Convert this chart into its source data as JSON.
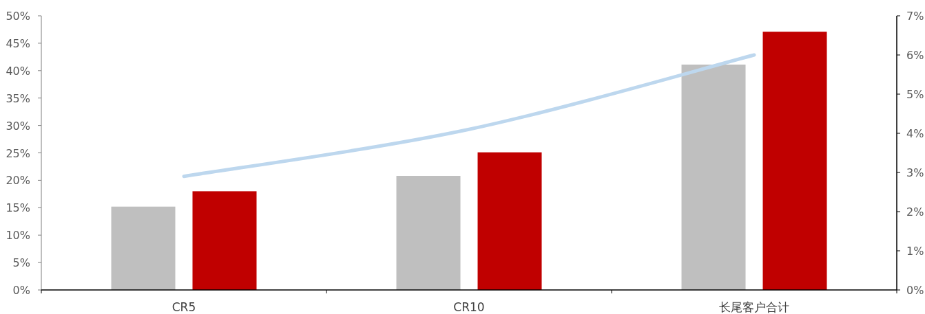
{
  "chart_data": {
    "type": "bar",
    "categories": [
      "CR5",
      "CR10",
      "长尾客户合计"
    ],
    "series": [
      {
        "color": "#bfbfbf",
        "values": [
          15.2,
          20.8,
          41.1
        ]
      },
      {
        "color": "#c00000",
        "values": [
          18,
          25.1,
          47.1
        ]
      },
      {
        "type": "line",
        "axis": "y2",
        "color": "#bdd7ee",
        "values": [
          2.9,
          4.1,
          6.0
        ]
      }
    ],
    "ylim": [
      0,
      50
    ],
    "yticks": [
      {
        "value": 0,
        "label": "0%"
      },
      {
        "value": 5,
        "label": "5%"
      },
      {
        "value": 10,
        "label": "10%"
      },
      {
        "value": 15,
        "label": "15%"
      },
      {
        "value": 20,
        "label": "20%"
      },
      {
        "value": 25,
        "label": "25%"
      },
      {
        "value": 30,
        "label": "30%"
      },
      {
        "value": 35,
        "label": "35%"
      },
      {
        "value": 40,
        "label": "40%"
      },
      {
        "value": 45,
        "label": "45%"
      },
      {
        "value": 50,
        "label": "50%"
      }
    ],
    "y2lim": [
      0,
      7
    ],
    "y2ticks": [
      {
        "value": 0,
        "label": "0%"
      },
      {
        "value": 1,
        "label": "1%"
      },
      {
        "value": 2,
        "label": "2%"
      },
      {
        "value": 3,
        "label": "3%"
      },
      {
        "value": 4,
        "label": "4%"
      },
      {
        "value": 5,
        "label": "5%"
      },
      {
        "value": 6,
        "label": "6%"
      },
      {
        "value": 7,
        "label": "7%"
      }
    ],
    "grid": false
  }
}
